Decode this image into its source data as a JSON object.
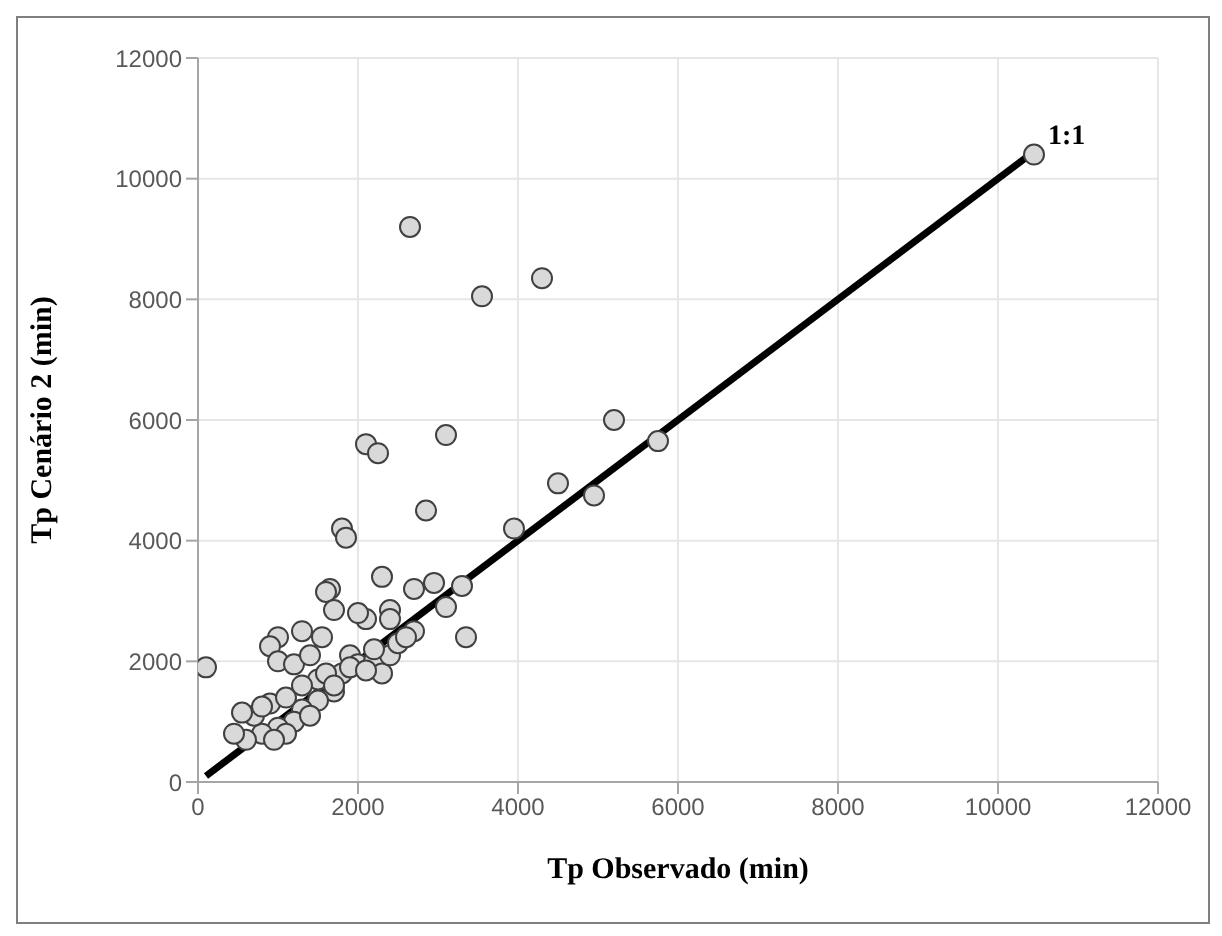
{
  "chart_data": {
    "type": "scatter",
    "xlabel": "Tp Observado (min)",
    "ylabel": "Tp Cenário 2 (min)",
    "xlim": [
      0,
      12000
    ],
    "xticks": [
      0,
      2000,
      4000,
      6000,
      8000,
      10000,
      12000
    ],
    "ylim": [
      0,
      12000
    ],
    "yticks": [
      0,
      2000,
      4000,
      6000,
      8000,
      10000,
      12000
    ],
    "grid": true,
    "series": [
      {
        "color": "#d9d9d9",
        "marker": "circle",
        "x": [
          100,
          2650,
          3550,
          4300,
          2100,
          2250,
          3100,
          5200,
          5750,
          4500,
          4950,
          2850,
          3950,
          1800,
          1850,
          10450,
          2300,
          2700,
          2950,
          3300,
          3350,
          3100,
          2700,
          2400,
          2100,
          2000,
          1650,
          1600,
          1700,
          1550,
          1300,
          1000,
          900,
          1000,
          1200,
          1400,
          1500,
          1700,
          1800,
          1900,
          2000,
          2200,
          2300,
          2400,
          2500,
          2600,
          2200,
          2400,
          1500,
          1300,
          1200,
          1000,
          800,
          600,
          450,
          700,
          900,
          1100,
          1300,
          1600,
          1700,
          1900,
          550,
          800,
          1100,
          950,
          1400,
          2100
        ],
        "values": [
          1900,
          9200,
          8050,
          8350,
          5600,
          5450,
          5750,
          6000,
          5650,
          4950,
          4750,
          4500,
          4200,
          4200,
          4050,
          10400,
          3400,
          3200,
          3300,
          3250,
          2400,
          2900,
          2500,
          2850,
          2700,
          2800,
          3200,
          3150,
          2850,
          2400,
          2500,
          2400,
          2250,
          2000,
          1950,
          2100,
          1700,
          1500,
          1800,
          2100,
          1950,
          2000,
          1800,
          2100,
          2300,
          2400,
          2200,
          2700,
          1350,
          1200,
          1000,
          900,
          800,
          700,
          800,
          1100,
          1300,
          1400,
          1600,
          1800,
          1600,
          1900,
          1150,
          1250,
          800,
          700,
          1100,
          1850
        ]
      },
      {
        "type": "line",
        "color": "#000000",
        "line_style": "solid",
        "x": [
          100,
          10450
        ],
        "values": [
          100,
          10450
        ]
      }
    ],
    "annotations": [
      {
        "text": "1:1",
        "x": 10450,
        "y": 10400
      }
    ]
  }
}
